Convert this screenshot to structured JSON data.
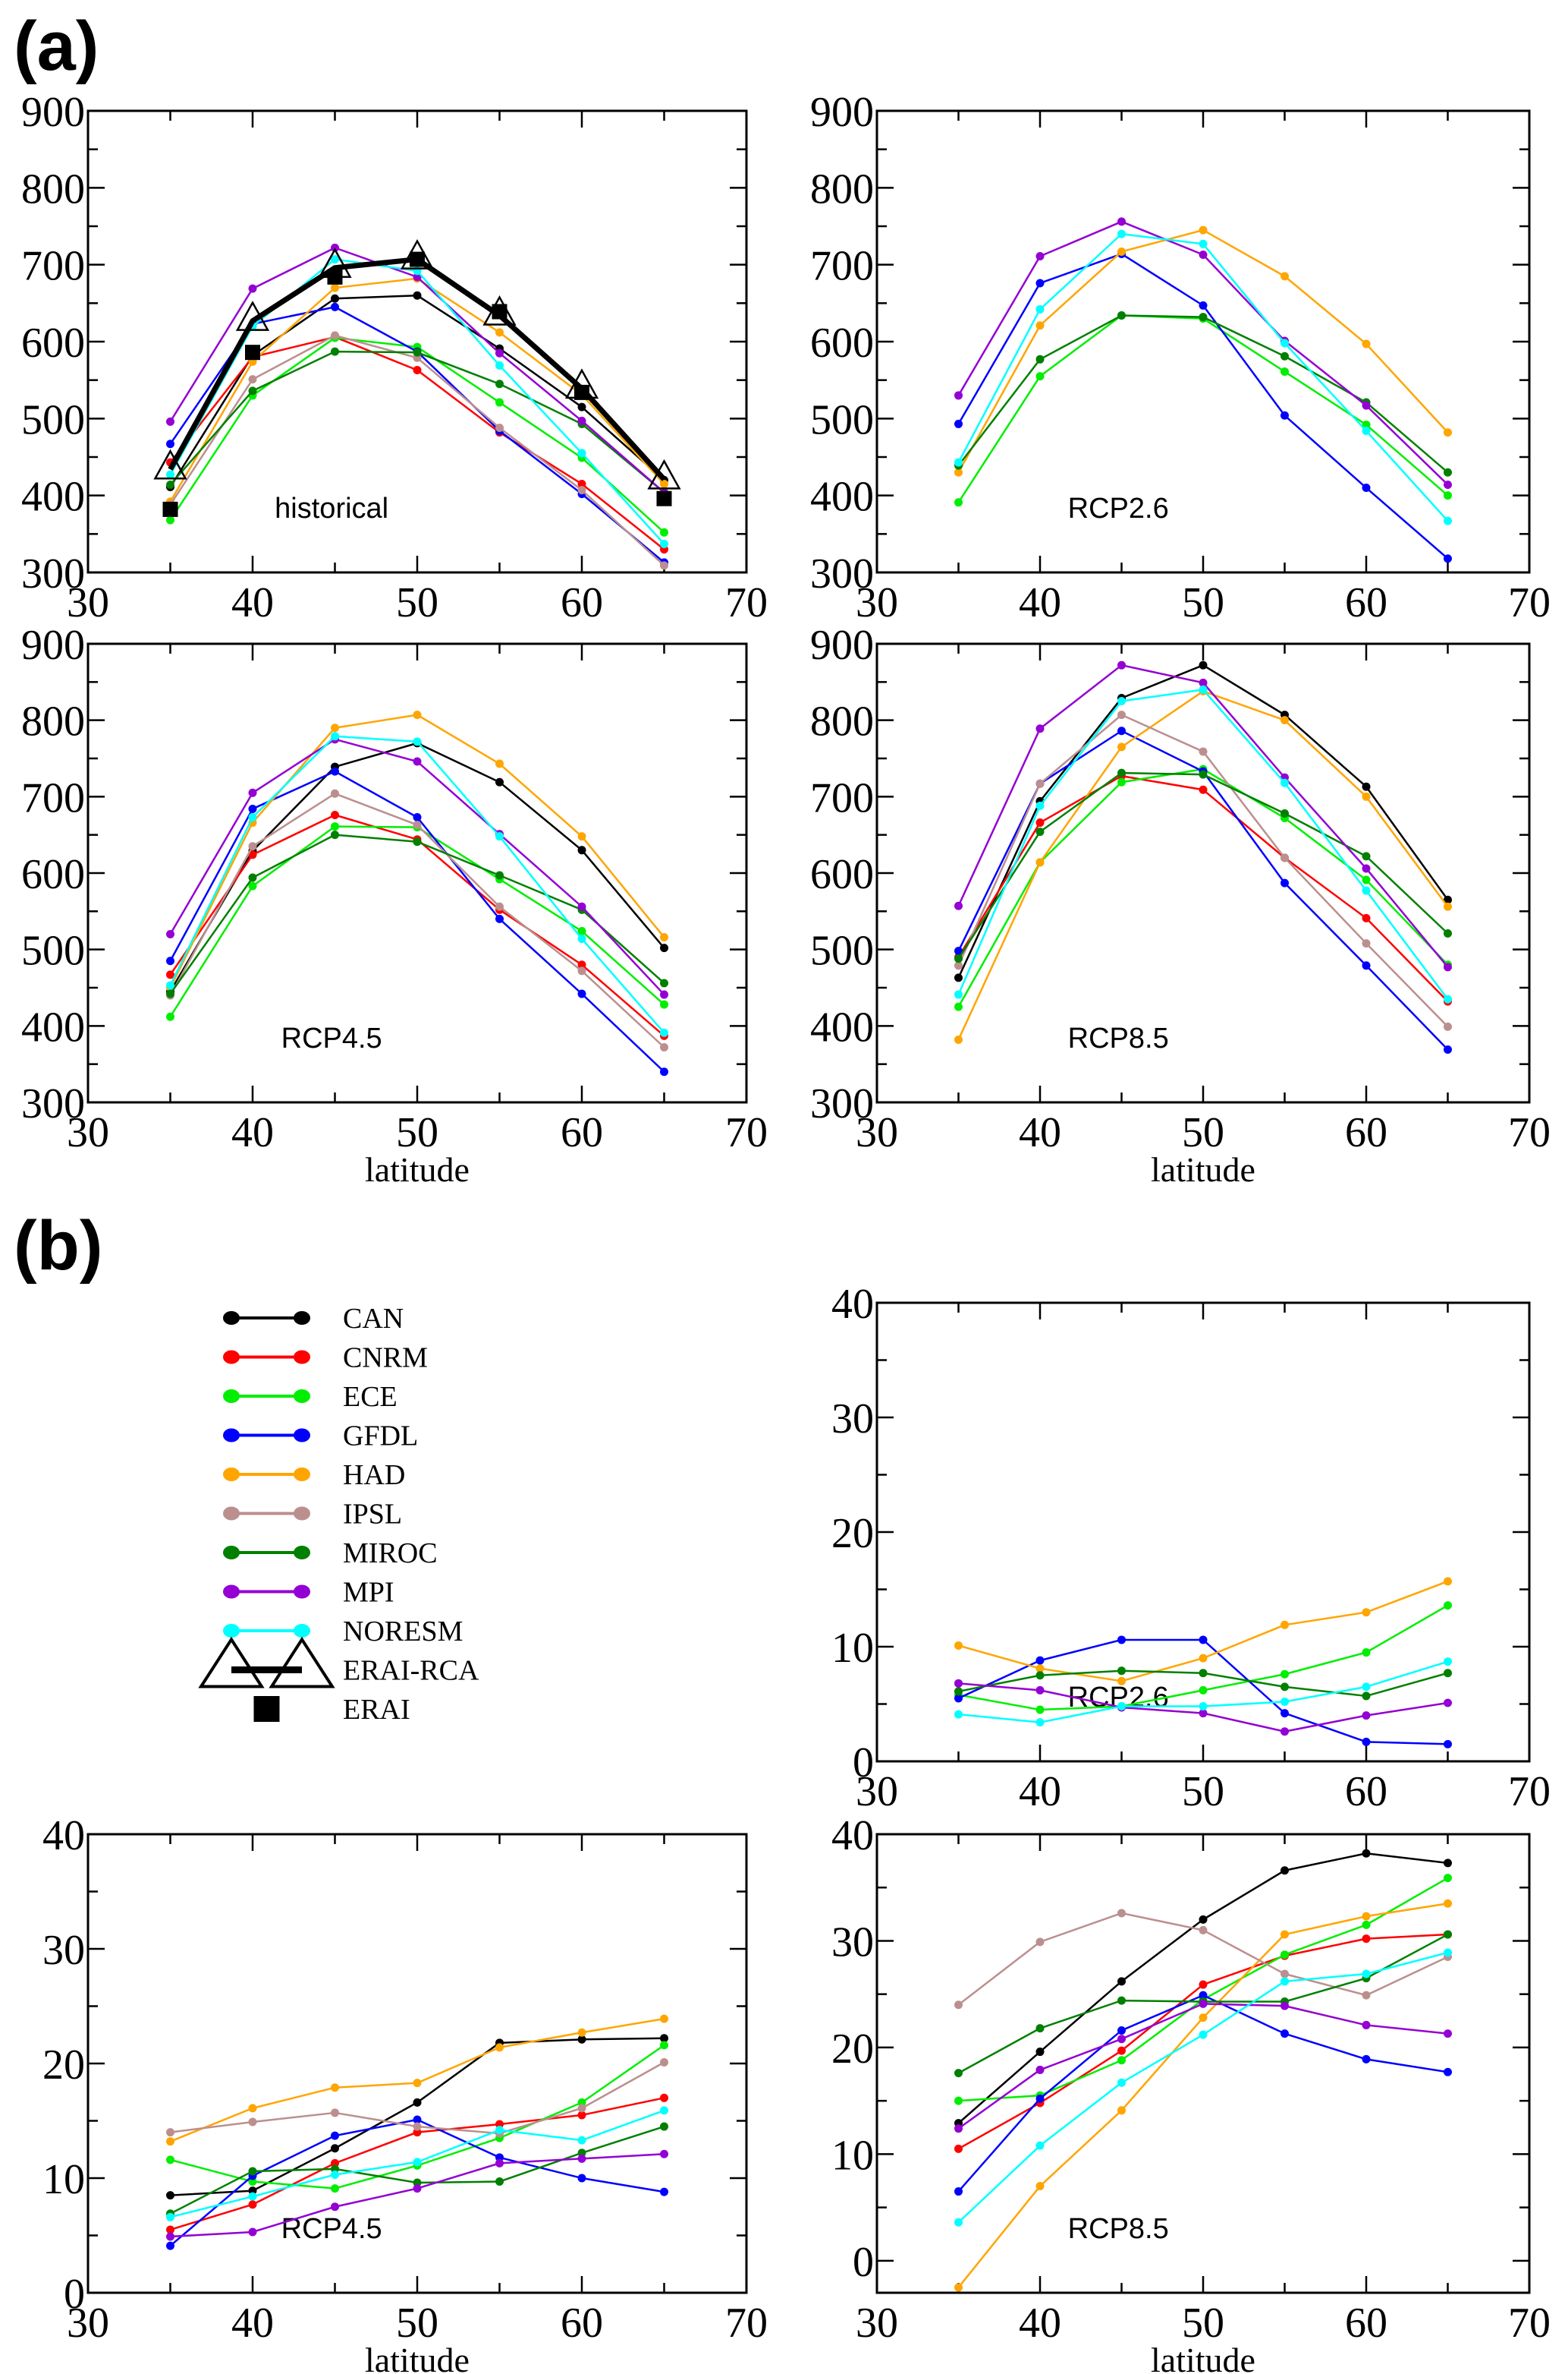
{
  "figure_labels": {
    "a": "(a)",
    "b": "(b)"
  },
  "legend": [
    {
      "name": "CAN",
      "color": "#000000",
      "kind": "line"
    },
    {
      "name": "CNRM",
      "color": "#ff0000",
      "kind": "line"
    },
    {
      "name": "ECE",
      "color": "#00ee00",
      "kind": "line"
    },
    {
      "name": "GFDL",
      "color": "#0000ff",
      "kind": "line"
    },
    {
      "name": "HAD",
      "color": "#ffa500",
      "kind": "line"
    },
    {
      "name": "IPSL",
      "color": "#bc8f8f",
      "kind": "line"
    },
    {
      "name": "MIROC",
      "color": "#008000",
      "kind": "line"
    },
    {
      "name": "MPI",
      "color": "#9400d3",
      "kind": "line"
    },
    {
      "name": "NORESM",
      "color": "#00ffff",
      "kind": "line"
    },
    {
      "name": "ERAI-RCA",
      "color": "#000000",
      "kind": "triangle-thick"
    },
    {
      "name": "ERAI",
      "color": "#000000",
      "kind": "square"
    }
  ],
  "chart_data": [
    {
      "id": "a-historical",
      "group": "a",
      "type": "line",
      "title": "historical",
      "xlabel": "",
      "ylabel": "",
      "xlim": [
        30,
        70
      ],
      "ylim": [
        300,
        900
      ],
      "xticks": [
        30,
        40,
        50,
        60,
        70
      ],
      "yticks": [
        300,
        400,
        500,
        600,
        700,
        800,
        900
      ],
      "x": [
        35,
        40,
        45,
        50,
        55,
        60,
        65
      ],
      "series": [
        {
          "name": "CAN",
          "values": [
            411,
            582,
            656,
            660,
            591,
            515,
            420
          ]
        },
        {
          "name": "CNRM",
          "values": [
            443,
            580,
            606,
            563,
            482,
            415,
            330
          ]
        },
        {
          "name": "ECE",
          "values": [
            368,
            530,
            605,
            593,
            521,
            449,
            352
          ]
        },
        {
          "name": "GFDL",
          "values": [
            467,
            623,
            645,
            587,
            484,
            402,
            313
          ]
        },
        {
          "name": "HAD",
          "values": [
            392,
            574,
            670,
            682,
            612,
            531,
            415
          ]
        },
        {
          "name": "IPSL",
          "values": [
            388,
            551,
            608,
            579,
            488,
            407,
            309
          ]
        },
        {
          "name": "MIROC",
          "values": [
            414,
            536,
            587,
            586,
            545,
            493,
            404
          ]
        },
        {
          "name": "MPI",
          "values": [
            496,
            669,
            722,
            684,
            585,
            497,
            404
          ]
        },
        {
          "name": "NORESM",
          "values": [
            427,
            620,
            707,
            692,
            569,
            455,
            337
          ]
        },
        {
          "name": "ERAI-RCA",
          "values": [
            434,
            627,
            696,
            707,
            634,
            539,
            421
          ]
        },
        {
          "name": "ERAI",
          "values": [
            382,
            586,
            684,
            707,
            639,
            534,
            396
          ]
        }
      ]
    },
    {
      "id": "a-rcp26",
      "group": "a",
      "type": "line",
      "title": "RCP2.6",
      "xlabel": "",
      "ylabel": "",
      "xlim": [
        30,
        70
      ],
      "ylim": [
        300,
        900
      ],
      "xticks": [
        30,
        40,
        50,
        60,
        70
      ],
      "yticks": [
        300,
        400,
        500,
        600,
        700,
        800,
        900
      ],
      "x": [
        35,
        40,
        45,
        50,
        55,
        60,
        65
      ],
      "series": [
        {
          "name": "ECE",
          "values": [
            391,
            555,
            634,
            630,
            561,
            492,
            400
          ]
        },
        {
          "name": "GFDL",
          "values": [
            493,
            676,
            714,
            647,
            504,
            410,
            318
          ]
        },
        {
          "name": "HAD",
          "values": [
            430,
            621,
            717,
            745,
            685,
            597,
            482
          ]
        },
        {
          "name": "MIROC",
          "values": [
            439,
            577,
            634,
            632,
            581,
            521,
            430
          ]
        },
        {
          "name": "MPI",
          "values": [
            530,
            711,
            756,
            713,
            601,
            517,
            414
          ]
        },
        {
          "name": "NORESM",
          "values": [
            443,
            642,
            740,
            727,
            598,
            484,
            367
          ]
        }
      ]
    },
    {
      "id": "a-rcp45",
      "group": "a",
      "type": "line",
      "title": "RCP4.5",
      "xlabel": "latitude",
      "ylabel": "",
      "xlim": [
        30,
        70
      ],
      "ylim": [
        300,
        900
      ],
      "xticks": [
        30,
        40,
        50,
        60,
        70
      ],
      "yticks": [
        300,
        400,
        500,
        600,
        700,
        800,
        900
      ],
      "x": [
        35,
        40,
        45,
        50,
        55,
        60,
        65
      ],
      "series": [
        {
          "name": "CAN",
          "values": [
            445,
            629,
            739,
            770,
            719,
            630,
            502
          ]
        },
        {
          "name": "CNRM",
          "values": [
            467,
            624,
            676,
            644,
            552,
            480,
            387
          ]
        },
        {
          "name": "ECE",
          "values": [
            412,
            583,
            661,
            660,
            592,
            524,
            428
          ]
        },
        {
          "name": "GFDL",
          "values": [
            485,
            684,
            733,
            673,
            540,
            442,
            340
          ]
        },
        {
          "name": "HAD",
          "values": [
            450,
            666,
            790,
            807,
            743,
            648,
            516
          ]
        },
        {
          "name": "IPSL",
          "values": [
            440,
            635,
            704,
            663,
            556,
            472,
            372
          ]
        },
        {
          "name": "MIROC",
          "values": [
            442,
            594,
            650,
            641,
            597,
            552,
            456
          ]
        },
        {
          "name": "MPI",
          "values": [
            520,
            705,
            775,
            746,
            651,
            556,
            441
          ]
        },
        {
          "name": "NORESM",
          "values": [
            453,
            673,
            779,
            772,
            648,
            514,
            391
          ]
        }
      ]
    },
    {
      "id": "a-rcp85",
      "group": "a",
      "type": "line",
      "title": "RCP8.5",
      "xlabel": "latitude",
      "ylabel": "",
      "xlim": [
        30,
        70
      ],
      "ylim": [
        300,
        900
      ],
      "xticks": [
        30,
        40,
        50,
        60,
        70
      ],
      "yticks": [
        300,
        400,
        500,
        600,
        700,
        800,
        900
      ],
      "x": [
        35,
        40,
        45,
        50,
        55,
        60,
        65
      ],
      "series": [
        {
          "name": "CAN",
          "values": [
            463,
            694,
            829,
            872,
            807,
            713,
            565
          ]
        },
        {
          "name": "CNRM",
          "values": [
            490,
            666,
            727,
            709,
            620,
            541,
            432
          ]
        },
        {
          "name": "ECE",
          "values": [
            425,
            614,
            719,
            736,
            672,
            591,
            480
          ]
        },
        {
          "name": "GFDL",
          "values": [
            498,
            717,
            786,
            733,
            587,
            479,
            369
          ]
        },
        {
          "name": "HAD",
          "values": [
            382,
            614,
            765,
            838,
            800,
            700,
            556
          ]
        },
        {
          "name": "IPSL",
          "values": [
            479,
            717,
            807,
            759,
            620,
            508,
            399
          ]
        },
        {
          "name": "MIROC",
          "values": [
            488,
            654,
            731,
            729,
            678,
            622,
            521
          ]
        },
        {
          "name": "MPI",
          "values": [
            557,
            789,
            872,
            849,
            725,
            606,
            477
          ]
        },
        {
          "name": "NORESM",
          "values": [
            441,
            688,
            825,
            840,
            718,
            577,
            435
          ]
        }
      ]
    },
    {
      "id": "b-rcp26",
      "group": "b",
      "type": "line",
      "title": "RCP2.6",
      "xlabel": "",
      "ylabel": "",
      "xlim": [
        30,
        70
      ],
      "ylim": [
        0,
        40
      ],
      "xticks": [
        30,
        40,
        50,
        60,
        70
      ],
      "yticks": [
        0,
        10,
        20,
        30,
        40
      ],
      "x": [
        35,
        40,
        45,
        50,
        55,
        60,
        65
      ],
      "series": [
        {
          "name": "ECE",
          "values": [
            5.8,
            4.5,
            4.8,
            6.2,
            7.6,
            9.5,
            13.6
          ]
        },
        {
          "name": "GFDL",
          "values": [
            5.5,
            8.8,
            10.6,
            10.6,
            4.2,
            1.7,
            1.5
          ]
        },
        {
          "name": "HAD",
          "values": [
            10.1,
            8.1,
            7.0,
            9.0,
            11.9,
            13.0,
            15.7
          ]
        },
        {
          "name": "MIROC",
          "values": [
            6.1,
            7.5,
            7.9,
            7.7,
            6.5,
            5.7,
            7.7
          ]
        },
        {
          "name": "MPI",
          "values": [
            6.8,
            6.2,
            4.7,
            4.2,
            2.6,
            4.0,
            5.1
          ]
        },
        {
          "name": "NORESM",
          "values": [
            4.1,
            3.4,
            4.8,
            4.8,
            5.2,
            6.5,
            8.7
          ]
        }
      ]
    },
    {
      "id": "b-rcp45",
      "group": "b",
      "type": "line",
      "title": "RCP4.5",
      "xlabel": "latitude",
      "ylabel": "",
      "xlim": [
        30,
        70
      ],
      "ylim": [
        0,
        40
      ],
      "xticks": [
        30,
        40,
        50,
        60,
        70
      ],
      "yticks": [
        0,
        10,
        20,
        30,
        40
      ],
      "x": [
        35,
        40,
        45,
        50,
        55,
        60,
        65
      ],
      "series": [
        {
          "name": "CAN",
          "values": [
            8.5,
            8.9,
            12.6,
            16.6,
            21.8,
            22.1,
            22.2
          ]
        },
        {
          "name": "CNRM",
          "values": [
            5.5,
            7.7,
            11.3,
            14.0,
            14.7,
            15.5,
            17.0
          ]
        },
        {
          "name": "ECE",
          "values": [
            11.6,
            9.7,
            9.1,
            11.1,
            13.5,
            16.6,
            21.6
          ]
        },
        {
          "name": "GFDL",
          "values": [
            4.1,
            10.2,
            13.7,
            15.1,
            11.8,
            10.0,
            8.8
          ]
        },
        {
          "name": "HAD",
          "values": [
            13.2,
            16.1,
            17.9,
            18.3,
            21.4,
            22.7,
            23.9
          ]
        },
        {
          "name": "IPSL",
          "values": [
            14.0,
            14.9,
            15.7,
            14.5,
            13.9,
            16.1,
            20.1
          ]
        },
        {
          "name": "MIROC",
          "values": [
            6.9,
            10.6,
            10.8,
            9.6,
            9.7,
            12.2,
            14.5
          ]
        },
        {
          "name": "MPI",
          "values": [
            4.9,
            5.3,
            7.5,
            9.1,
            11.3,
            11.7,
            12.1
          ]
        },
        {
          "name": "NORESM",
          "values": [
            6.6,
            8.4,
            10.3,
            11.4,
            14.2,
            13.3,
            15.9
          ]
        }
      ]
    },
    {
      "id": "b-rcp85",
      "group": "b",
      "type": "line",
      "title": "RCP8.5",
      "xlabel": "latitude",
      "ylabel": "",
      "xlim": [
        30,
        70
      ],
      "ylim": [
        -3,
        40
      ],
      "xticks": [
        30,
        40,
        50,
        60,
        70
      ],
      "yticks": [
        0,
        10,
        20,
        30,
        40
      ],
      "x": [
        35,
        40,
        45,
        50,
        55,
        60,
        65
      ],
      "series": [
        {
          "name": "CAN",
          "values": [
            12.9,
            19.6,
            26.2,
            32.0,
            36.6,
            38.2,
            37.3
          ]
        },
        {
          "name": "CNRM",
          "values": [
            10.5,
            14.8,
            19.7,
            25.9,
            28.6,
            30.2,
            30.6
          ]
        },
        {
          "name": "ECE",
          "values": [
            15.0,
            15.5,
            18.8,
            24.5,
            28.7,
            31.5,
            35.9
          ]
        },
        {
          "name": "GFDL",
          "values": [
            6.5,
            15.2,
            21.6,
            24.9,
            21.3,
            18.9,
            17.7
          ]
        },
        {
          "name": "HAD",
          "values": [
            -2.5,
            7.0,
            14.1,
            22.8,
            30.6,
            32.3,
            33.5
          ]
        },
        {
          "name": "IPSL",
          "values": [
            24.0,
            29.9,
            32.6,
            31.0,
            26.9,
            24.9,
            28.5
          ]
        },
        {
          "name": "MIROC",
          "values": [
            17.6,
            21.8,
            24.4,
            24.3,
            24.3,
            26.5,
            30.6
          ]
        },
        {
          "name": "MPI",
          "values": [
            12.4,
            17.9,
            20.8,
            24.1,
            23.9,
            22.1,
            21.3
          ]
        },
        {
          "name": "NORESM",
          "values": [
            3.6,
            10.8,
            16.7,
            21.2,
            26.2,
            26.9,
            28.9
          ]
        }
      ]
    }
  ]
}
